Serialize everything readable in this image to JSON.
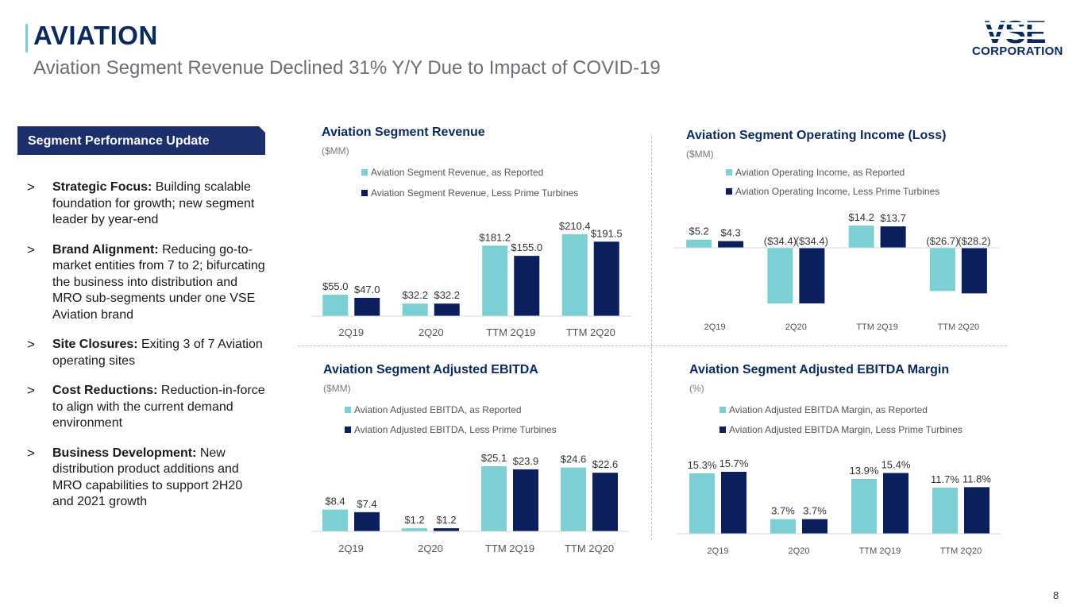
{
  "header": {
    "title": "AVIATION",
    "subtitle": "Aviation Segment Revenue Declined 31% Y/Y  Due to Impact of COVID-19"
  },
  "logo": {
    "main": "VSE",
    "sub": "CORPORATION"
  },
  "sidebar": {
    "banner": "Segment Performance Update",
    "bullets": [
      {
        "lead": "Strategic Focus:",
        "text": "  Building scalable foundation for growth; new segment leader by year-end"
      },
      {
        "lead": "Brand Alignment:",
        "text": "  Reducing go-to-market entities from 7 to 2; bifurcating the business into distribution and MRO sub-segments under one VSE Aviation brand"
      },
      {
        "lead": "Site Closures:",
        "text": "  Exiting 3 of 7 Aviation operating sites"
      },
      {
        "lead": "Cost Reductions:",
        "text": " Reduction-in-force to align with the current demand environment"
      },
      {
        "lead": "Business Development:",
        "text": "  New distribution product additions and MRO capabilities to support 2H20 and 2021 growth"
      }
    ]
  },
  "colors": {
    "reported": "#7ccfd2",
    "less_prime": "#0b1f5c",
    "navy": "#0b2a5c",
    "banner": "#1d2f6b"
  },
  "chart_data": [
    {
      "type": "bar",
      "title": "Aviation Segment Revenue",
      "unit": "($MM)",
      "categories": [
        "2Q19",
        "2Q20",
        "TTM 2Q19",
        "TTM 2Q20"
      ],
      "series": [
        {
          "name": "Aviation Segment Revenue, as Reported",
          "values": [
            55.0,
            32.2,
            181.2,
            210.4
          ],
          "labels": [
            "$55.0",
            "$32.2",
            "$181.2",
            "$210.4"
          ]
        },
        {
          "name": "Aviation Segment Revenue, Less Prime Turbines",
          "values": [
            47.0,
            32.2,
            155.0,
            191.5
          ],
          "labels": [
            "$47.0",
            "$32.2",
            "$155.0",
            "$191.5"
          ]
        }
      ],
      "ylim": [
        0,
        210.4
      ]
    },
    {
      "type": "bar",
      "title": "Aviation Segment Operating Income (Loss)",
      "unit": "($MM)",
      "categories": [
        "2Q19",
        "2Q20",
        "TTM 2Q19",
        "TTM 2Q20"
      ],
      "series": [
        {
          "name": "Aviation Operating Income, as Reported",
          "values": [
            5.2,
            -34.4,
            14.2,
            -26.7
          ],
          "labels": [
            "$5.2",
            "($34.4)",
            "$14.2",
            "($26.7)"
          ]
        },
        {
          "name": "Aviation Operating Income, Less Prime Turbines",
          "values": [
            4.3,
            -34.4,
            13.7,
            -28.2
          ],
          "labels": [
            "$4.3",
            "($34.4)",
            "$13.7",
            "($28.2)"
          ]
        }
      ],
      "ylim": [
        -34.4,
        14.2
      ]
    },
    {
      "type": "bar",
      "title": "Aviation Segment Adjusted EBITDA",
      "unit": "($MM)",
      "categories": [
        "2Q19",
        "2Q20",
        "TTM 2Q19",
        "TTM 2Q20"
      ],
      "series": [
        {
          "name": "Aviation Adjusted EBITDA, as Reported",
          "values": [
            8.4,
            1.2,
            25.1,
            24.6
          ],
          "labels": [
            "$8.4",
            "$1.2",
            "$25.1",
            "$24.6"
          ]
        },
        {
          "name": "Aviation Adjusted EBITDA, Less Prime Turbines",
          "values": [
            7.4,
            1.2,
            23.9,
            22.6
          ],
          "labels": [
            "$7.4",
            "$1.2",
            "$23.9",
            "$22.6"
          ]
        }
      ],
      "ylim": [
        0,
        25.1
      ]
    },
    {
      "type": "bar",
      "title": "Aviation Segment Adjusted EBITDA Margin",
      "unit": "(%)",
      "categories": [
        "2Q19",
        "2Q20",
        "TTM 2Q19",
        "TTM 2Q20"
      ],
      "series": [
        {
          "name": "Aviation Adjusted EBITDA Margin, as Reported",
          "values": [
            15.3,
            3.7,
            13.9,
            11.7
          ],
          "labels": [
            "15.3%",
            "3.7%",
            "13.9%",
            "11.7%"
          ]
        },
        {
          "name": "Aviation Adjusted EBITDA Margin, Less Prime Turbines",
          "values": [
            15.7,
            3.7,
            15.4,
            11.8
          ],
          "labels": [
            "15.7%",
            "3.7%",
            "15.4%",
            "11.8%"
          ]
        }
      ],
      "ylim": [
        0,
        15.7
      ]
    }
  ],
  "footer": {
    "page_number": "8"
  }
}
